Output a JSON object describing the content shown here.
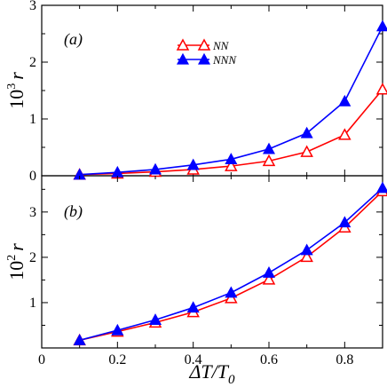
{
  "chart_data": [
    {
      "type": "line",
      "panel_label": "(a)",
      "ylabel": {
        "prefix": "10",
        "exponent": "3",
        "var": "r"
      },
      "xlim": [
        0,
        0.9
      ],
      "ylim": [
        0,
        3
      ],
      "yticks": [
        0,
        1,
        2,
        3
      ],
      "x": [
        0.1,
        0.2,
        0.3,
        0.4,
        0.5,
        0.6,
        0.7,
        0.8,
        0.9
      ],
      "legend_position": "top-center",
      "series": [
        {
          "name": "NN",
          "color": "#ff0000",
          "marker": "open-triangle",
          "values": [
            0.02,
            0.04,
            0.07,
            0.11,
            0.17,
            0.26,
            0.42,
            0.72,
            1.52
          ]
        },
        {
          "name": "NNN",
          "color": "#0000ff",
          "marker": "filled-triangle",
          "values": [
            0.02,
            0.06,
            0.11,
            0.19,
            0.29,
            0.47,
            0.75,
            1.31,
            2.63
          ]
        }
      ]
    },
    {
      "type": "line",
      "panel_label": "(b)",
      "ylabel": {
        "prefix": "10",
        "exponent": "2",
        "var": "r"
      },
      "xlabel": {
        "main": "ΔT/T",
        "sub": "0"
      },
      "xlim": [
        0,
        0.9
      ],
      "ylim": [
        0,
        3.8
      ],
      "yticks": [
        1,
        2,
        3
      ],
      "xticks": [
        0,
        0.2,
        0.4,
        0.6,
        0.8
      ],
      "x": [
        0.1,
        0.2,
        0.3,
        0.4,
        0.5,
        0.6,
        0.7,
        0.8,
        0.9
      ],
      "series": [
        {
          "color": "#ff0000",
          "marker": "open-triangle",
          "values": [
            0.17,
            0.36,
            0.56,
            0.79,
            1.1,
            1.51,
            2.01,
            2.66,
            3.46
          ]
        },
        {
          "color": "#0000ff",
          "marker": "filled-triangle",
          "values": [
            0.17,
            0.39,
            0.62,
            0.89,
            1.22,
            1.66,
            2.16,
            2.77,
            3.53
          ]
        }
      ]
    }
  ]
}
